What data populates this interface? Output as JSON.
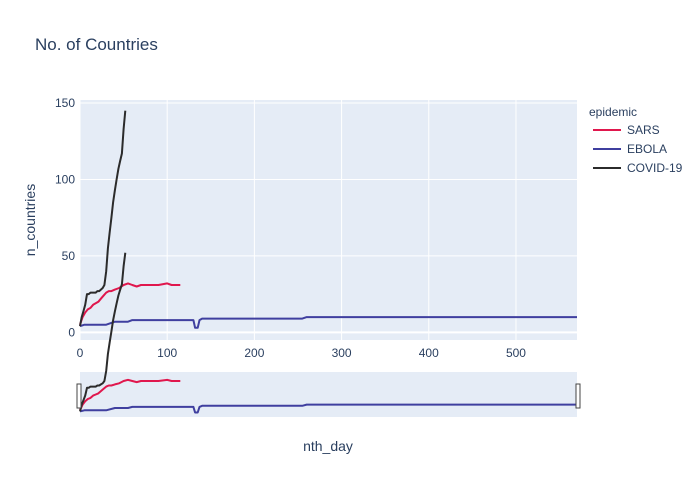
{
  "chart_data": {
    "type": "line",
    "title": "No. of Countries",
    "xlabel": "nth_day",
    "ylabel": "n_countries",
    "xlim": [
      0,
      570
    ],
    "ylim": [
      -5,
      152
    ],
    "x_ticks": [
      0,
      100,
      200,
      300,
      400,
      500
    ],
    "y_ticks": [
      0,
      50,
      100,
      150
    ],
    "grid": true,
    "legend": {
      "title": "epidemic",
      "position": "right"
    },
    "rangeslider": true,
    "series": [
      {
        "name": "SARS",
        "color": "#e0174d",
        "x": [
          0,
          3,
          6,
          9,
          12,
          15,
          18,
          21,
          24,
          27,
          30,
          33,
          36,
          40,
          45,
          50,
          55,
          60,
          65,
          70,
          80,
          90,
          100,
          105,
          110,
          115
        ],
        "y": [
          5,
          10,
          13,
          15,
          16,
          18,
          19,
          20,
          22,
          24,
          26,
          27,
          27,
          28,
          29,
          31,
          32,
          31,
          30,
          31,
          31,
          31,
          32,
          31,
          31,
          31
        ]
      },
      {
        "name": "EBOLA",
        "color": "#3f3f9f",
        "x": [
          0,
          5,
          10,
          30,
          40,
          55,
          60,
          130,
          132,
          135,
          137,
          140,
          200,
          255,
          260,
          570
        ],
        "y": [
          4,
          5,
          5,
          5,
          7,
          7,
          8,
          8,
          3,
          3,
          8,
          9,
          9,
          9,
          10,
          10
        ]
      },
      {
        "name": "COVID-19",
        "color": "#2b2b2b",
        "x": [
          0,
          2,
          4,
          6,
          8,
          10,
          12,
          14,
          16,
          18,
          20,
          22,
          24,
          26,
          28,
          30,
          32,
          34,
          36,
          38,
          40,
          42,
          44,
          46,
          48,
          50,
          52
        ],
        "y": [
          4,
          10,
          14,
          18,
          25,
          25,
          26,
          26,
          26,
          26,
          27,
          27,
          28,
          29,
          31,
          40,
          55,
          65,
          75,
          85,
          93,
          100,
          107,
          112,
          117,
          133,
          145
        ]
      }
    ]
  }
}
